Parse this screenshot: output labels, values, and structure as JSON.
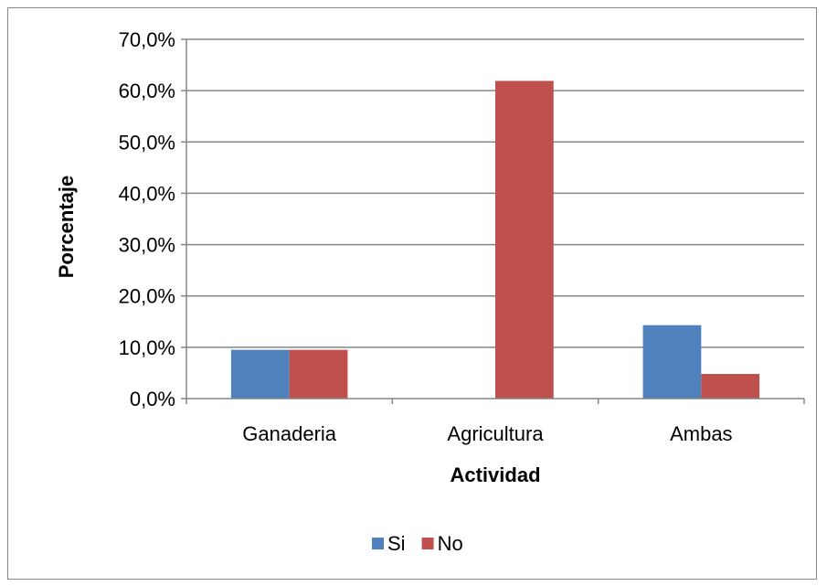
{
  "chart_data": {
    "type": "bar",
    "title": "",
    "xlabel": "Actividad",
    "ylabel": "Porcentaje",
    "categories": [
      "Ganaderia",
      "Agricultura",
      "Ambas"
    ],
    "series": [
      {
        "name": "Si",
        "color": "#4F81BD",
        "values": [
          9.5,
          0.0,
          14.3
        ]
      },
      {
        "name": "No",
        "color": "#C0504D",
        "values": [
          9.5,
          61.9,
          4.8
        ]
      }
    ],
    "ylim": [
      0,
      70
    ],
    "yticks": [
      "0,0%",
      "10,0%",
      "20,0%",
      "30,0%",
      "40,0%",
      "50,0%",
      "60,0%",
      "70,0%"
    ],
    "grid": true,
    "legend_position": "bottom"
  }
}
